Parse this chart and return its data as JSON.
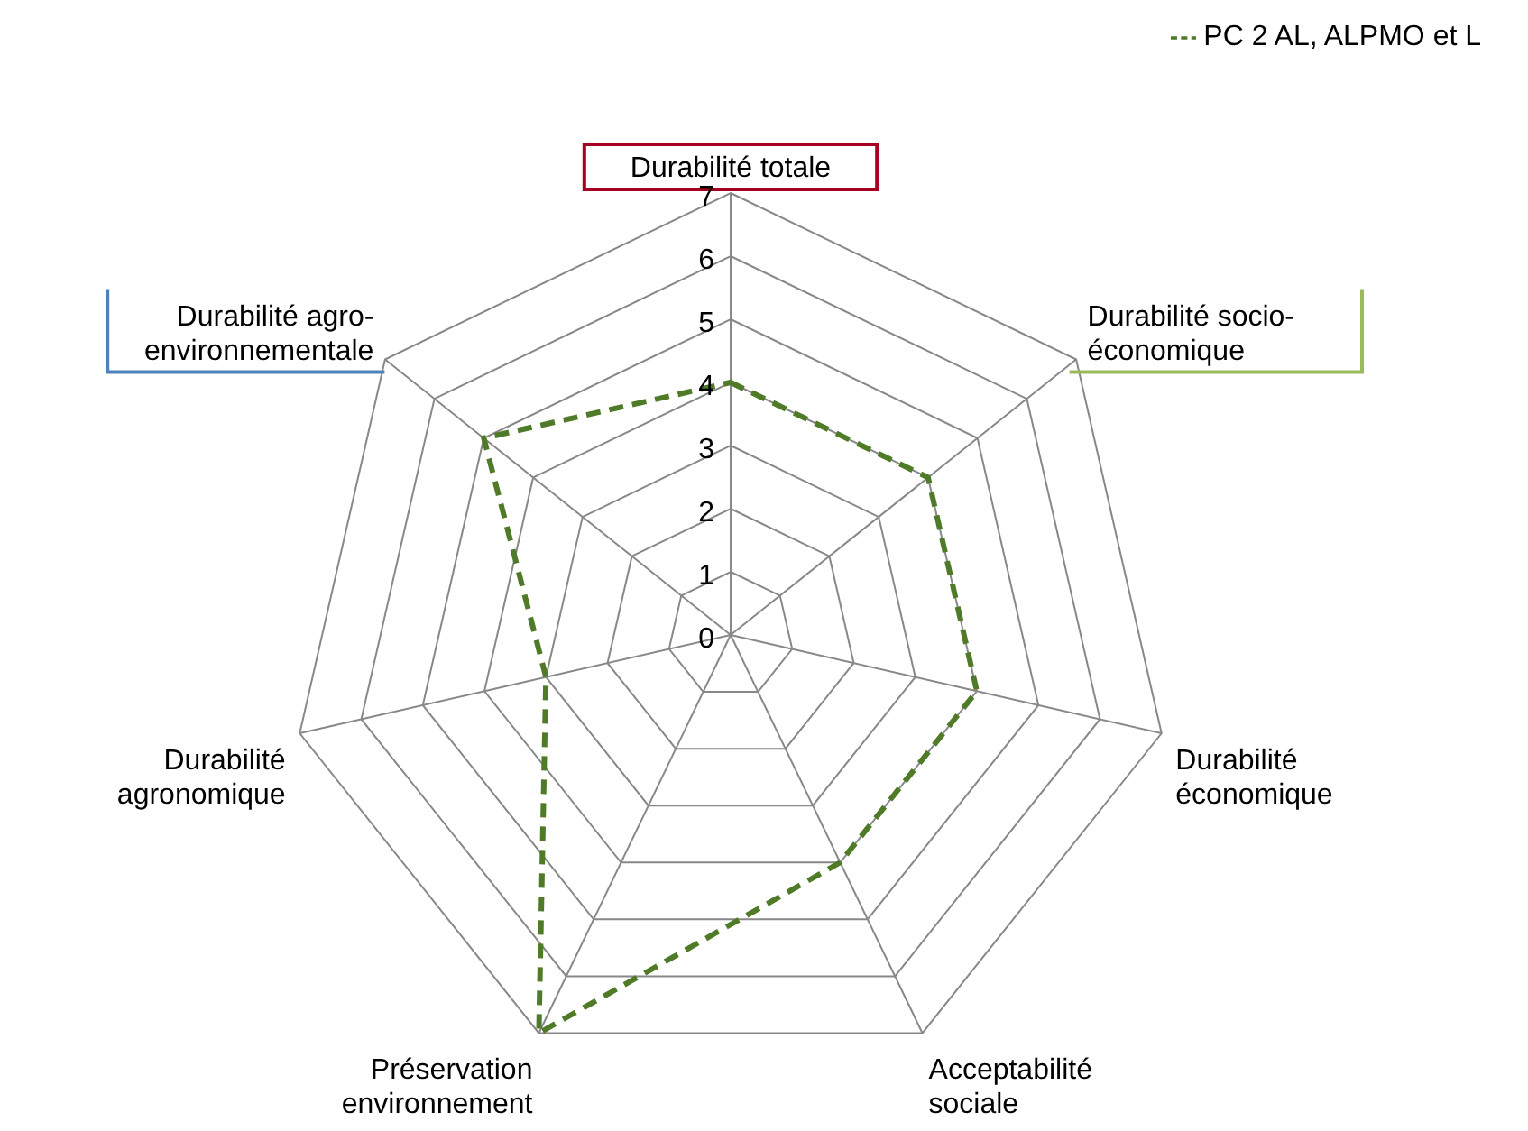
{
  "chart_data": {
    "type": "radar",
    "categories": [
      "Durabilité totale",
      "Durabilité socio-économique",
      "Durabilité économique",
      "Acceptabilité sociale",
      "Préservation environnement",
      "Durabilité agronomique",
      "Durabilité agro-environnementale"
    ],
    "series": [
      {
        "name": "PC 2 AL, ALPMO et L",
        "color": "#4f7a28",
        "values": [
          4,
          4,
          4,
          4,
          7,
          3,
          5
        ]
      }
    ],
    "ylim": [
      0,
      7
    ],
    "yticks": [
      0,
      1,
      2,
      3,
      4,
      5,
      6,
      7
    ],
    "grid": true,
    "legend": "top right",
    "marker": "none",
    "line_style": "dashed"
  }
}
